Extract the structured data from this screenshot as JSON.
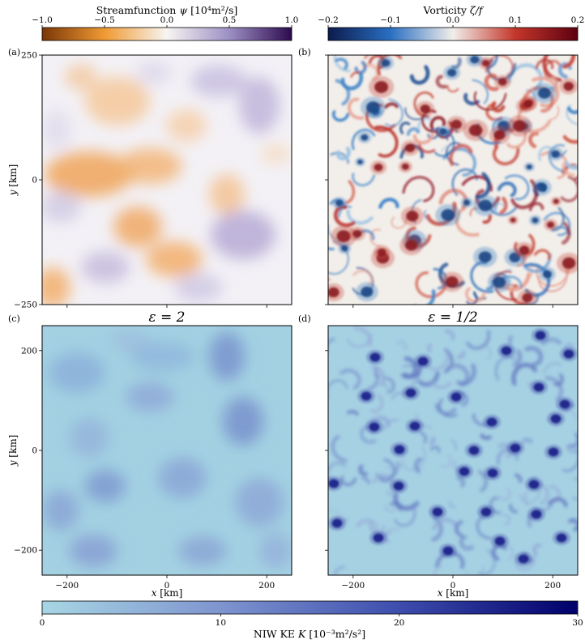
{
  "figure": {
    "colorbars": {
      "streamfunction": {
        "label_prefix": "Streamfunction ",
        "label_symbol": "ψ",
        "label_units": " [10⁴m²/s]",
        "ticks": [
          "−1.0",
          "−0.5",
          "0.0",
          "0.5",
          "1.0"
        ],
        "tick_values": [
          -1.0,
          -0.5,
          0.0,
          0.5,
          1.0
        ],
        "range": [
          -1.0,
          1.0
        ]
      },
      "vorticity": {
        "label_prefix": "Vorticity ",
        "label_symbol": "ζ/f",
        "label_units": "",
        "ticks": [
          "−0.2",
          "−0.1",
          "0.0",
          "0.1",
          "0.2"
        ],
        "tick_values": [
          -0.2,
          -0.1,
          0.0,
          0.1,
          0.2
        ],
        "range": [
          -0.2,
          0.2
        ]
      },
      "niw_ke": {
        "label_prefix": "NIW KE ",
        "label_symbol": "K",
        "label_units": " [10⁻³m²/s²]",
        "ticks": [
          "0",
          "10",
          "20",
          "30"
        ],
        "tick_values": [
          0,
          10,
          20,
          30
        ],
        "range": [
          0,
          30
        ]
      }
    },
    "panels": [
      {
        "id": "a",
        "letter": "(a)",
        "title": "",
        "field": "streamfunction"
      },
      {
        "id": "b",
        "letter": "(b)",
        "title": "",
        "field": "vorticity"
      },
      {
        "id": "c",
        "letter": "(c)",
        "title": "ε = 2",
        "field": "niw_ke"
      },
      {
        "id": "d",
        "letter": "(d)",
        "title": "ε = 1/2",
        "field": "niw_ke"
      }
    ],
    "axes": {
      "top_y_ticks": [
        "250",
        "0",
        "−250"
      ],
      "top_y_tick_values": [
        250,
        0,
        -250
      ],
      "bottom_y_ticks": [
        "200",
        "0",
        "−200"
      ],
      "bottom_y_tick_values": [
        200,
        0,
        -200
      ],
      "x_ticks": [
        "−200",
        "0",
        "200"
      ],
      "x_tick_values": [
        -200,
        0,
        200
      ],
      "xlim": [
        -250,
        250
      ],
      "ylim": [
        -250,
        250
      ],
      "x_label_var": "x",
      "x_label_unit": " [km]",
      "y_label_var": "y",
      "y_label_unit": " [km]"
    },
    "colors": {
      "psi_neg": "#c8651b",
      "psi_zero": "#f7f5f2",
      "psi_pos": "#2d0a4e",
      "vort_neg": "#0c1b4c",
      "vort_zero": "#f2eeea",
      "vort_pos": "#5d0010",
      "ke_low": "#a7d6e4",
      "ke_high": "#00006b"
    }
  }
}
